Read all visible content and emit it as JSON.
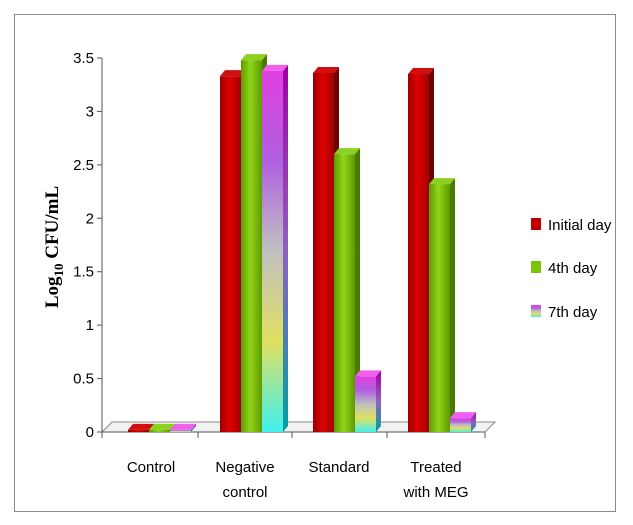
{
  "chart_data": {
    "type": "bar",
    "ylabel": "Log10 CFU/mL",
    "ylabel_main": "Log",
    "ylabel_sub": "10",
    "ylabel_tail": "CFU/mL",
    "ylim": [
      0,
      3.5
    ],
    "yticks": [
      "0",
      "0.5",
      "1",
      "1.5",
      "2",
      "2.5",
      "3",
      "3.5"
    ],
    "categories": [
      [
        "Control"
      ],
      [
        "Negative",
        "control"
      ],
      [
        "Standard"
      ],
      [
        "Treated",
        "with MEG"
      ]
    ],
    "series": [
      {
        "name": "Initial day",
        "values": [
          0.02,
          3.33,
          3.36,
          3.35
        ],
        "color": "#c00000"
      },
      {
        "name": "4th day",
        "values": [
          0.02,
          3.48,
          2.6,
          2.32
        ],
        "color": "#7cc40a"
      },
      {
        "name": "7th day",
        "values": [
          0.02,
          3.38,
          0.52,
          0.13
        ],
        "color": "#e040e0"
      }
    ],
    "legend_position": "right",
    "grid": false
  }
}
